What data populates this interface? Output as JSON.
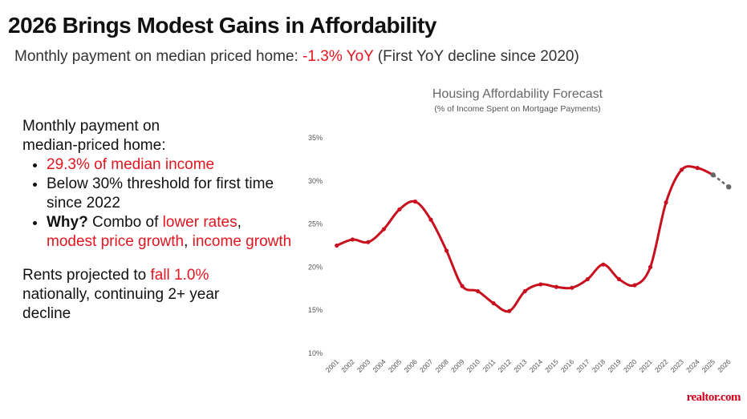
{
  "header": {
    "title": "2026 Brings Modest Gains in Affordability",
    "subtitle": [
      {
        "text": "Monthly payment on median priced home: "
      },
      {
        "text": "-1.3% YoY",
        "color": "#e3151f"
      },
      {
        "text": " (First YoY decline since 2020)"
      }
    ]
  },
  "panel": {
    "intro": [
      {
        "text": "Monthly payment on median-priced home:"
      }
    ],
    "bullets": [
      [
        {
          "text": "29.3% of median income",
          "color": "#e3151f"
        }
      ],
      [
        {
          "text": "Below 30% threshold for first time since 2022"
        }
      ],
      [
        {
          "text": "Why?",
          "bold": true
        },
        {
          "text": " Combo of "
        },
        {
          "text": "lower rates",
          "color": "#e3151f"
        },
        {
          "text": ", "
        },
        {
          "text": "modest price growth",
          "color": "#e3151f"
        },
        {
          "text": ", "
        },
        {
          "text": "income growth",
          "color": "#e3151f"
        }
      ]
    ],
    "outro": [
      {
        "text": "Rents projected to "
      },
      {
        "text": "fall 1.0%",
        "color": "#e3151f"
      },
      {
        "text": " nationally, continuing 2+ year decline"
      }
    ]
  },
  "logo": "realtor.com",
  "chart_data": {
    "type": "line",
    "title": "Housing Affordability Forecast",
    "subtitle": "(% of Income Spent on Mortgage Payments)",
    "categories": [
      "2001",
      "2002",
      "2003",
      "2004",
      "2005",
      "2006",
      "2007",
      "2008",
      "2009",
      "2010",
      "2011",
      "2012",
      "2013",
      "2014",
      "2015",
      "2016",
      "2017",
      "2018",
      "2019",
      "2020",
      "2021",
      "2022",
      "2023",
      "2024",
      "2025",
      "2026"
    ],
    "series": [
      {
        "color": "#c8101e",
        "values": [
          22.5,
          23.2,
          22.9,
          24.4,
          26.7,
          27.6,
          25.5,
          21.9,
          17.8,
          17.2,
          15.8,
          14.9,
          17.2,
          18.0,
          17.7,
          17.6,
          18.6,
          20.3,
          18.6,
          17.9,
          20.0,
          27.5,
          31.3,
          31.5,
          30.7,
          null
        ]
      },
      {
        "color": "#666666",
        "dashed": true,
        "values": [
          null,
          null,
          null,
          null,
          null,
          null,
          null,
          null,
          null,
          null,
          null,
          null,
          null,
          null,
          null,
          null,
          null,
          null,
          null,
          null,
          null,
          null,
          null,
          null,
          30.7,
          29.3
        ]
      }
    ],
    "ylim": [
      10,
      35
    ],
    "yticks": [
      {
        "value": 10,
        "label": "10%"
      },
      {
        "value": 15,
        "label": "15%"
      },
      {
        "value": 20,
        "label": "20%"
      },
      {
        "value": 25,
        "label": "25%"
      },
      {
        "value": 30,
        "label": "30%"
      },
      {
        "value": 35,
        "label": "35%"
      }
    ],
    "grid": false
  }
}
